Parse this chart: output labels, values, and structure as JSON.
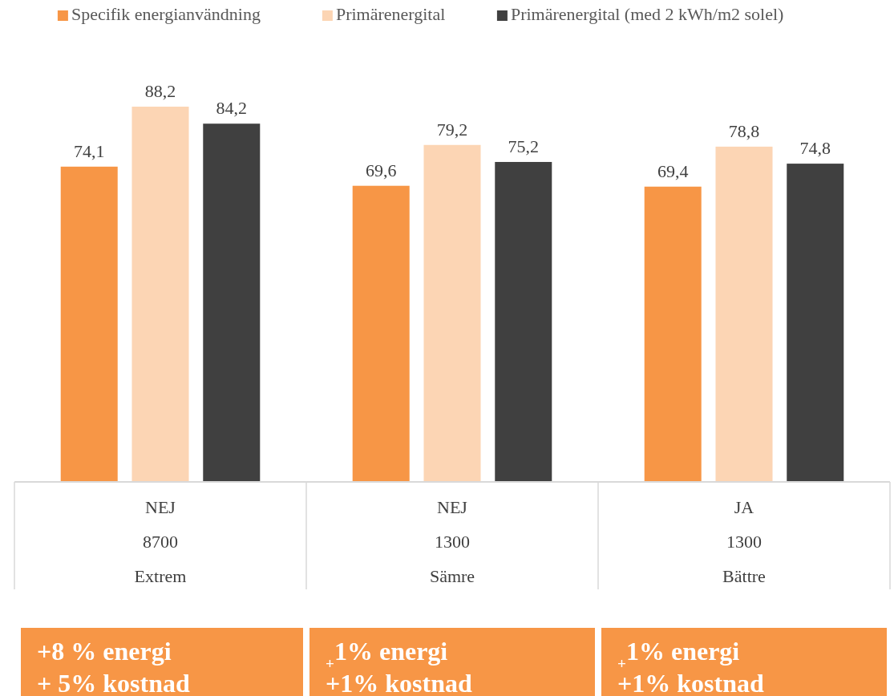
{
  "chart_data": {
    "type": "bar",
    "categories": [
      "NEJ\n8700\nExtrem",
      "NEJ\n1300\nSämre",
      "JA\n1300\nBättre"
    ],
    "series": [
      {
        "name": "Specifik energianvändning",
        "color": "#f79646",
        "values": [
          74.1,
          69.6,
          69.4
        ],
        "value_labels": [
          "74,1",
          "69,6",
          "69,4"
        ]
      },
      {
        "name": "Primärenergital",
        "color": "#fcd5b4",
        "values": [
          88.2,
          79.2,
          78.8
        ],
        "value_labels": [
          "88,2",
          "79,2",
          "78,8"
        ]
      },
      {
        "name": "Primärenergital (med 2 kWh/m2 solel)",
        "color": "#404040",
        "values": [
          84.2,
          75.2,
          74.8
        ],
        "value_labels": [
          "84,2",
          "75,2",
          "74,8"
        ]
      }
    ],
    "legend": "top",
    "annotations": [
      "+8 % energi\n+ 5% kostnad",
      "$_{+}$1% energi\n+1% kostnad",
      "$_{+}$1% energi\n+1% kostnad"
    ]
  }
}
